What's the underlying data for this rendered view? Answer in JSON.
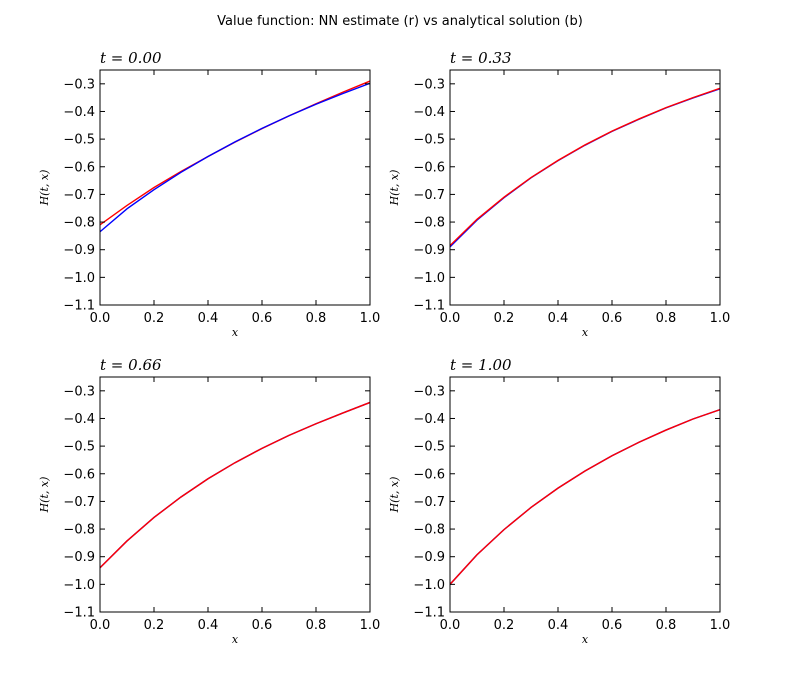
{
  "suptitle": "Value function: NN estimate (r) vs analytical solution (b)",
  "colors": {
    "nn": "#ff0000",
    "analytical": "#0000ff"
  },
  "chart_data": [
    {
      "type": "line",
      "title": "t = 0.00",
      "xlabel": "x",
      "ylabel": "H(t, x)",
      "xlim": [
        0.0,
        1.0
      ],
      "ylim": [
        -1.1,
        -0.25
      ],
      "xticks": [
        "0.0",
        "0.2",
        "0.4",
        "0.6",
        "0.8",
        "1.0"
      ],
      "yticks": [
        "−0.3",
        "−0.4",
        "−0.5",
        "−0.6",
        "−0.7",
        "−0.8",
        "−0.9",
        "−1.0",
        "−1.1"
      ],
      "x": [
        0.0,
        0.1,
        0.2,
        0.3,
        0.4,
        0.5,
        0.6,
        0.7,
        0.8,
        0.9,
        1.0
      ],
      "series": [
        {
          "color": "#ff0000",
          "values": [
            -0.81,
            -0.74,
            -0.675,
            -0.617,
            -0.563,
            -0.511,
            -0.462,
            -0.416,
            -0.372,
            -0.33,
            -0.29
          ]
        },
        {
          "color": "#0000ff",
          "values": [
            -0.835,
            -0.752,
            -0.683,
            -0.62,
            -0.563,
            -0.51,
            -0.461,
            -0.416,
            -0.374,
            -0.335,
            -0.298
          ]
        }
      ]
    },
    {
      "type": "line",
      "title": "t = 0.33",
      "xlabel": "x",
      "ylabel": "H(t, x)",
      "xlim": [
        0.0,
        1.0
      ],
      "ylim": [
        -1.1,
        -0.25
      ],
      "xticks": [
        "0.0",
        "0.2",
        "0.4",
        "0.6",
        "0.8",
        "1.0"
      ],
      "yticks": [
        "−0.3",
        "−0.4",
        "−0.5",
        "−0.6",
        "−0.7",
        "−0.8",
        "−0.9",
        "−1.0",
        "−1.1"
      ],
      "x": [
        0.0,
        0.1,
        0.2,
        0.3,
        0.4,
        0.5,
        0.6,
        0.7,
        0.8,
        0.9,
        1.0
      ],
      "series": [
        {
          "color": "#0000ff",
          "values": [
            -0.89,
            -0.793,
            -0.712,
            -0.64,
            -0.578,
            -0.522,
            -0.472,
            -0.428,
            -0.387,
            -0.351,
            -0.318
          ]
        },
        {
          "color": "#ff0000",
          "values": [
            -0.885,
            -0.79,
            -0.71,
            -0.639,
            -0.577,
            -0.521,
            -0.471,
            -0.427,
            -0.386,
            -0.35,
            -0.316
          ]
        }
      ]
    },
    {
      "type": "line",
      "title": "t = 0.66",
      "xlabel": "x",
      "ylabel": "H(t, x)",
      "xlim": [
        0.0,
        1.0
      ],
      "ylim": [
        -1.1,
        -0.25
      ],
      "xticks": [
        "0.0",
        "0.2",
        "0.4",
        "0.6",
        "0.8",
        "1.0"
      ],
      "yticks": [
        "−0.3",
        "−0.4",
        "−0.5",
        "−0.6",
        "−0.7",
        "−0.8",
        "−0.9",
        "−1.0",
        "−1.1"
      ],
      "x": [
        0.0,
        0.1,
        0.2,
        0.3,
        0.4,
        0.5,
        0.6,
        0.7,
        0.8,
        0.9,
        1.0
      ],
      "series": [
        {
          "color": "#0000ff",
          "values": [
            -0.94,
            -0.843,
            -0.758,
            -0.684,
            -0.618,
            -0.56,
            -0.508,
            -0.461,
            -0.419,
            -0.38,
            -0.342
          ]
        },
        {
          "color": "#ff0000",
          "values": [
            -0.94,
            -0.843,
            -0.758,
            -0.684,
            -0.618,
            -0.56,
            -0.508,
            -0.461,
            -0.419,
            -0.38,
            -0.342
          ]
        }
      ]
    },
    {
      "type": "line",
      "title": "t = 1.00",
      "xlabel": "x",
      "ylabel": "H(t, x)",
      "xlim": [
        0.0,
        1.0
      ],
      "ylim": [
        -1.1,
        -0.25
      ],
      "xticks": [
        "0.0",
        "0.2",
        "0.4",
        "0.6",
        "0.8",
        "1.0"
      ],
      "yticks": [
        "−0.3",
        "−0.4",
        "−0.5",
        "−0.6",
        "−0.7",
        "−0.8",
        "−0.9",
        "−1.0",
        "−1.1"
      ],
      "x": [
        0.0,
        0.1,
        0.2,
        0.3,
        0.4,
        0.5,
        0.6,
        0.7,
        0.8,
        0.9,
        1.0
      ],
      "series": [
        {
          "color": "#0000ff",
          "values": [
            -1.0,
            -0.893,
            -0.802,
            -0.722,
            -0.652,
            -0.59,
            -0.535,
            -0.486,
            -0.442,
            -0.402,
            -0.368
          ]
        },
        {
          "color": "#ff0000",
          "values": [
            -1.0,
            -0.893,
            -0.802,
            -0.722,
            -0.652,
            -0.59,
            -0.535,
            -0.486,
            -0.442,
            -0.402,
            -0.368
          ]
        }
      ]
    }
  ]
}
